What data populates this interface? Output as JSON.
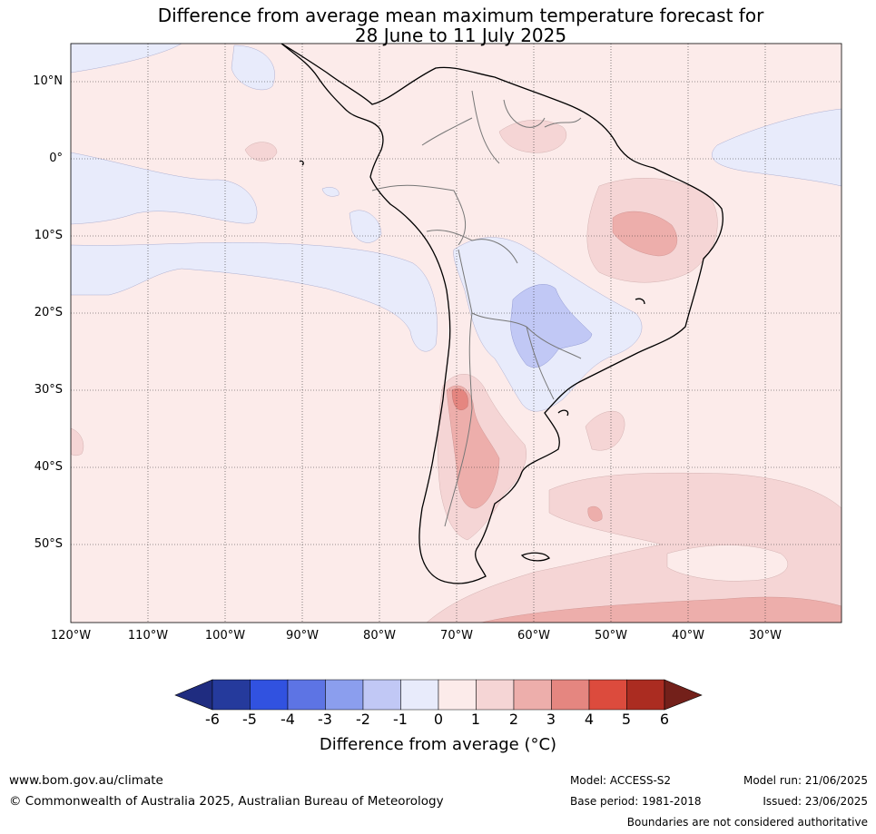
{
  "title": {
    "line1": "Difference from average mean maximum temperature forecast for",
    "line2": "28 June to 11 July 2025"
  },
  "axes": {
    "lat_labels": [
      "10°N",
      "0°",
      "10°S",
      "20°S",
      "30°S",
      "40°S",
      "50°S"
    ],
    "lon_labels": [
      "120°W",
      "110°W",
      "100°W",
      "90°W",
      "80°W",
      "70°W",
      "60°W",
      "50°W",
      "40°W",
      "30°W"
    ]
  },
  "colorbar": {
    "ticks": [
      "-6",
      "-5",
      "-4",
      "-3",
      "-2",
      "-1",
      "0",
      "1",
      "2",
      "3",
      "4",
      "5",
      "6"
    ],
    "colors": [
      "#253a9c",
      "#3152e0",
      "#5d74e4",
      "#8b9eee",
      "#c1c8f5",
      "#e8ebfb",
      "#fcebea",
      "#f5d5d5",
      "#edaeab",
      "#e58680",
      "#dc4b3d",
      "#ab2c21"
    ],
    "under_color": "#1f2c80",
    "over_color": "#73201a",
    "label": "Difference from average (°C)"
  },
  "footer": {
    "website": "www.bom.gov.au/climate",
    "copyright": "© Commonwealth of Australia 2025, Australian Bureau of Meteorology",
    "model": "Model: ACCESS-S2",
    "base_period": "Base period: 1981-2018",
    "model_run": "Model run: 21/06/2025",
    "issued": "Issued: 23/06/2025",
    "disclaimer": "Boundaries are not considered authoritative"
  }
}
